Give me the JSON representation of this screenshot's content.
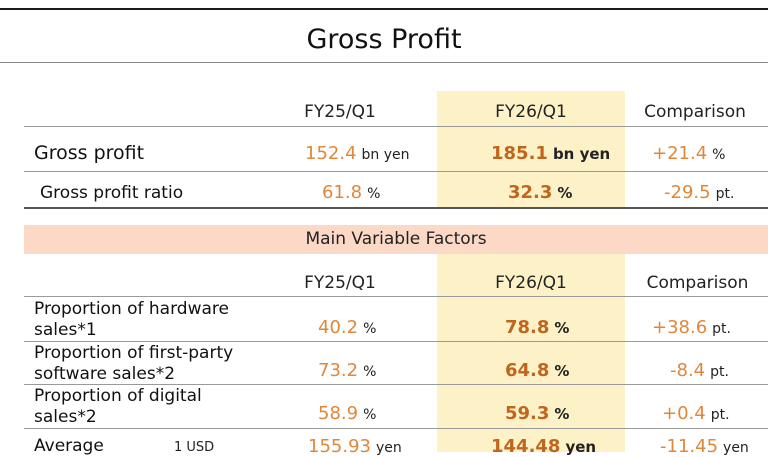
{
  "title": "Gross Profit",
  "top_table": {
    "headers": [
      "FY25/Q1",
      "FY26/Q1",
      "Comparison"
    ],
    "rows": [
      {
        "label": "Gross profit",
        "fy25": "152.4",
        "fy25_unit": "bn yen",
        "fy26": "185.1",
        "fy26_unit": "bn yen",
        "cmp": "+21.4",
        "cmp_unit": "%"
      },
      {
        "label": "Gross profit ratio",
        "fy25": "61.8",
        "fy25_unit": "%",
        "fy26": "32.3",
        "fy26_unit": "%",
        "cmp": "-29.5",
        "cmp_unit": "pt."
      }
    ]
  },
  "factors": {
    "band_label": "Main Variable Factors",
    "headers": [
      "FY25/Q1",
      "FY26/Q1",
      "Comparison"
    ],
    "rows": [
      {
        "label": "Proportion of hardware sales*1",
        "fy25": "40.2",
        "fy25_unit": "%",
        "fy26": "78.8",
        "fy26_unit": "%",
        "cmp": "+38.6",
        "cmp_unit": "pt."
      },
      {
        "label": "Proportion of first-party software sales*2",
        "fy25": "73.2",
        "fy25_unit": "%",
        "fy26": "64.8",
        "fy26_unit": "%",
        "cmp": "-8.4",
        "cmp_unit": "pt."
      },
      {
        "label": "Proportion of digital sales*2",
        "fy25": "58.9",
        "fy25_unit": "%",
        "fy26": "59.3",
        "fy26_unit": "%",
        "cmp": "+0.4",
        "cmp_unit": "pt."
      },
      {
        "label": "Average",
        "sublabel": "1 USD",
        "fy25": "155.93",
        "fy25_unit": "yen",
        "fy26": "144.48",
        "fy26_unit": "yen",
        "cmp": "-11.45",
        "cmp_unit": "yen"
      }
    ]
  },
  "colors": {
    "highlight": "#fdf1c8",
    "band": "#fbd9c6",
    "value": "#e0873a",
    "value_bold": "#c0661c"
  }
}
